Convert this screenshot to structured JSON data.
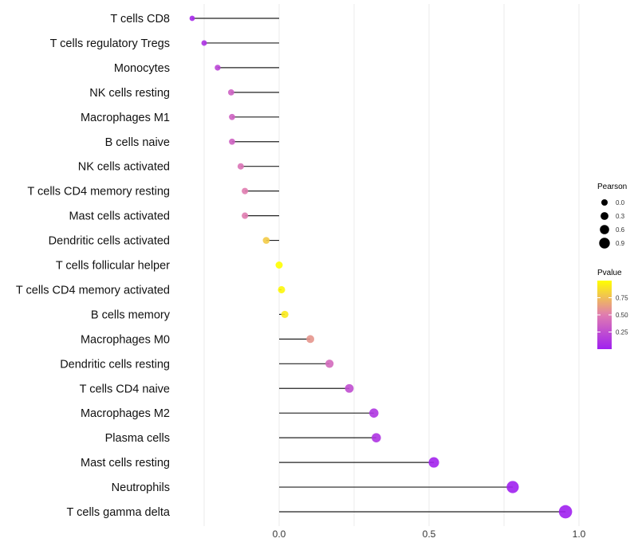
{
  "chart_data": {
    "type": "lollipop",
    "title": "",
    "xlabel": "",
    "ylabel": "",
    "xlim": [
      -0.35,
      1.0
    ],
    "xticks": [
      0.0,
      0.5,
      1.0
    ],
    "xtick_labels": [
      "0.0",
      "0.5",
      "1.0"
    ],
    "grid": true,
    "categories": [
      "T cells CD8",
      "T cells regulatory  Tregs",
      "Monocytes",
      "NK cells resting",
      "Macrophages M1",
      "B cells naive",
      "NK cells activated",
      "T cells CD4 memory resting",
      "Mast cells activated",
      "Dendritic cells activated",
      "T cells follicular helper",
      "T cells CD4 memory activated",
      "B cells memory",
      "Macrophages M0",
      "Dendritic cells resting",
      "T cells CD4 naive",
      "Macrophages M2",
      "Plasma cells",
      "Mast cells resting",
      "Neutrophils",
      "T cells gamma delta"
    ],
    "pearson": [
      -0.29,
      -0.25,
      -0.205,
      -0.16,
      -0.157,
      -0.157,
      -0.128,
      -0.114,
      -0.114,
      -0.043,
      0.0,
      0.008,
      0.019,
      0.104,
      0.168,
      0.234,
      0.316,
      0.324,
      0.516,
      0.779,
      0.955
    ],
    "pvalue": [
      0.05,
      0.1,
      0.2,
      0.35,
      0.36,
      0.36,
      0.45,
      0.5,
      0.5,
      0.8,
      1.0,
      0.97,
      0.92,
      0.6,
      0.4,
      0.25,
      0.12,
      0.11,
      0.02,
      0.0,
      0.0
    ],
    "legend": {
      "size_title": "Pearson",
      "size_labels": [
        "0.0",
        "0.3",
        "0.6",
        "0.9"
      ],
      "size_values": [
        0.0,
        0.3,
        0.6,
        0.9
      ],
      "color_title": "Pvalue",
      "color_labels": [
        "0.75",
        "0.50",
        "0.25"
      ],
      "color_values": [
        0.75,
        0.5,
        0.25
      ],
      "color_range": [
        0,
        1
      ],
      "placement": "right"
    },
    "colors": {
      "low": "#a020f0",
      "mid": "#e07cb0",
      "high": "#ffff00"
    }
  }
}
